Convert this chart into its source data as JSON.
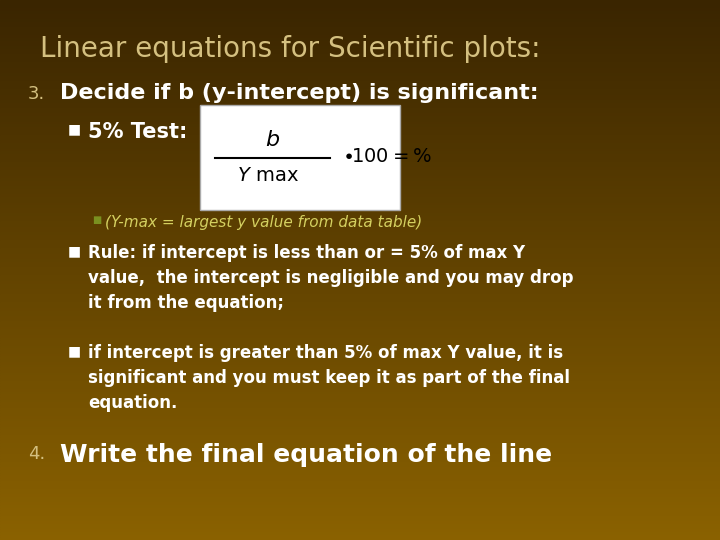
{
  "title": "Linear equations for Scientific plots:",
  "title_fontsize": 20,
  "title_color": "#D4C080",
  "heading3": "Decide if b (y-intercept) is significant:",
  "heading3_fontsize": 16,
  "heading3_color": "#FFFFFF",
  "num3_color": "#D4C080",
  "num3_fontsize": 13,
  "bullet1": "5% Test:",
  "bullet1_fontsize": 15,
  "bullet1_color": "#FFFFFF",
  "sub_bullet": "(Y-max = largest y value from data table)",
  "sub_bullet_fontsize": 11,
  "sub_bullet_color": "#D4D060",
  "bullet2": "Rule: if intercept is less than or = 5% of max Y\nvalue,  the intercept is negligible and you may drop\nit from the equation;",
  "bullet2_fontsize": 12,
  "bullet2_color": "#FFFFFF",
  "bullet3": "if intercept is greater than 5% of max Y value, it is\nsignificant and you must keep it as part of the final\nequation.",
  "bullet3_fontsize": 12,
  "bullet3_color": "#FFFFFF",
  "heading4": "Write the final equation of the line",
  "heading4_fontsize": 18,
  "heading4_color": "#FFFFFF",
  "num4_color": "#D4C080",
  "num4_fontsize": 13
}
